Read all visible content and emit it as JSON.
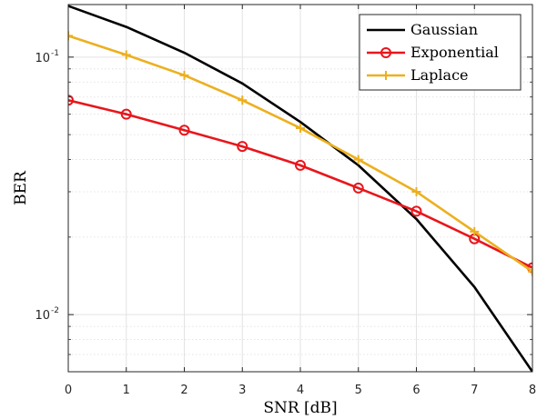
{
  "chart_data": {
    "type": "line",
    "xlabel": "SNR [dB]",
    "ylabel": "BER",
    "xlim": [
      0,
      8
    ],
    "ylim": [
      0.006,
      0.16
    ],
    "yscale": "log",
    "grid": true,
    "legend_position": "top-right",
    "x": [
      0,
      1,
      2,
      3,
      4,
      5,
      6,
      7,
      8
    ],
    "x_ticks": [
      "0",
      "1",
      "2",
      "3",
      "4",
      "5",
      "6",
      "7",
      "8"
    ],
    "y_ticks": [
      {
        "value": 0.01,
        "base": "10",
        "exponent": "-2"
      },
      {
        "value": 0.1,
        "base": "10",
        "exponent": "-1"
      }
    ],
    "series": [
      {
        "name": "Gaussian",
        "color": "#000000",
        "marker": "none",
        "values": [
          0.158,
          0.131,
          0.104,
          0.079,
          0.056,
          0.038,
          0.0235,
          0.0128,
          0.006
        ]
      },
      {
        "name": "Exponential",
        "color": "#e8161c",
        "marker": "circle",
        "values": [
          0.068,
          0.06,
          0.052,
          0.045,
          0.038,
          0.031,
          0.0252,
          0.0197,
          0.0152
        ]
      },
      {
        "name": "Laplace",
        "color": "#ecb01f",
        "marker": "plus",
        "values": [
          0.121,
          0.102,
          0.085,
          0.068,
          0.053,
          0.04,
          0.03,
          0.021,
          0.0147
        ]
      }
    ]
  }
}
